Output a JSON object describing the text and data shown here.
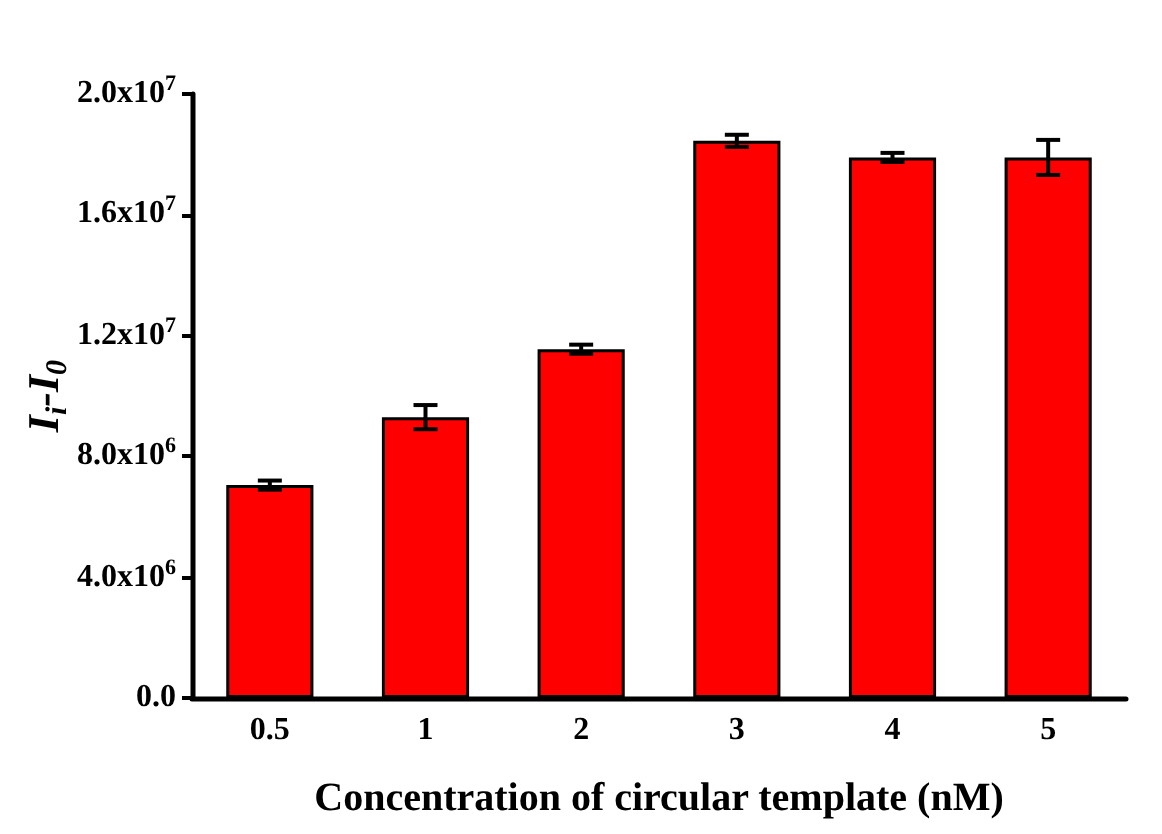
{
  "chart_data": {
    "type": "bar",
    "xlabel": "Concentration of circular template (nM)",
    "ylabel": "I$_{i}$-I$_{0}$",
    "categories": [
      "0.5",
      "1",
      "2",
      "3",
      "4",
      "5"
    ],
    "values": [
      7050000,
      9300000,
      11550000,
      18450000,
      17900000,
      17900000
    ],
    "errors": [
      150000,
      400000,
      150000,
      200000,
      150000,
      580000
    ],
    "color": "#ff0000",
    "ylim": [
      0,
      20000000
    ],
    "yticks": [
      {
        "value": 0,
        "label": "0.0"
      },
      {
        "value": 4000000,
        "label": "4.0x10$^{6}$"
      },
      {
        "value": 8000000,
        "label": "8.0x10$^{6}$"
      },
      {
        "value": 12000000,
        "label": "1.2x10$^{7}$"
      },
      {
        "value": 16000000,
        "label": "1.6x10$^{7}$"
      },
      {
        "value": 20000000,
        "label": "2.0x10$^{7}$"
      }
    ],
    "grid": false
  }
}
